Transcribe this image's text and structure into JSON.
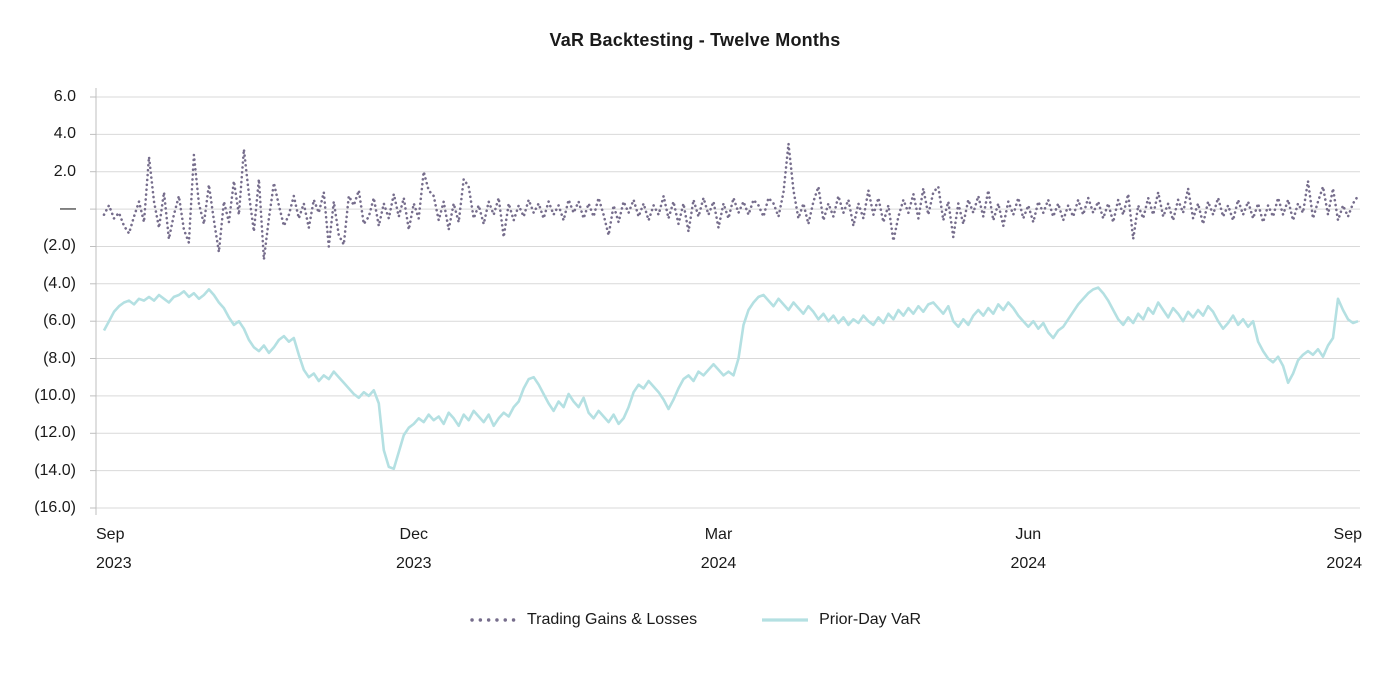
{
  "title": "VaR Backtesting - Twelve Months",
  "colors": {
    "gains_losses": "#766d8c",
    "prior_day_var": "#b4e0e2",
    "gridline": "#d9d9d9",
    "axis": "#bfbfbf",
    "text": "#1a1a1a"
  },
  "legend": {
    "items": [
      "Trading Gains & Losses",
      "Prior-Day VaR"
    ]
  },
  "chart_data": {
    "type": "line",
    "title": "VaR Backtesting - Twelve Months",
    "grid": true,
    "legend_position": "bottom",
    "y_axis": {
      "min": -16,
      "max": 6,
      "step": 2,
      "format": "accounting",
      "tick_values": [
        6,
        4,
        2,
        0,
        -2,
        -4,
        -6,
        -8,
        -10,
        -12,
        -14,
        -16
      ],
      "tick_labels": [
        "6.0",
        "4.0",
        "2.0",
        "—",
        "(2.0)",
        "(4.0)",
        "(6.0)",
        "(8.0)",
        "(10.0)",
        "(12.0)",
        "(14.0)",
        "(16.0)"
      ]
    },
    "x_axis": {
      "ticks": [
        {
          "line1": "Sep",
          "line2": "2023",
          "index": 0
        },
        {
          "line1": "Dec",
          "line2": "2023",
          "index": 62
        },
        {
          "line1": "Mar",
          "line2": "2024",
          "index": 123
        },
        {
          "line1": "Jun",
          "line2": "2024",
          "index": 185
        },
        {
          "line1": "Sep",
          "line2": "2024",
          "index": 251
        }
      ]
    },
    "series": [
      {
        "name": "Trading Gains & Losses",
        "style": "dotted",
        "color": "#766d8c",
        "values": [
          -0.3,
          0.2,
          -0.5,
          -0.2,
          -0.9,
          -1.3,
          -0.4,
          0.4,
          -0.7,
          2.8,
          0.4,
          -1.0,
          0.9,
          -1.6,
          -0.3,
          0.7,
          -1.1,
          -1.8,
          2.9,
          0.3,
          -0.8,
          1.3,
          -0.6,
          -2.3,
          0.4,
          -0.7,
          1.5,
          -0.3,
          3.2,
          0.8,
          -1.2,
          1.6,
          -2.7,
          -0.5,
          1.4,
          0.2,
          -0.9,
          -0.3,
          0.7,
          -0.5,
          0.3,
          -1.0,
          0.5,
          -0.2,
          0.9,
          -2.0,
          0.4,
          -1.4,
          -1.9,
          0.7,
          0.2,
          1.0,
          -0.8,
          -0.4,
          0.6,
          -0.9,
          0.3,
          -0.5,
          0.8,
          -0.4,
          0.6,
          -1.1,
          0.3,
          -0.5,
          2.0,
          1.0,
          0.7,
          -0.6,
          0.4,
          -1.1,
          0.3,
          -0.7,
          1.6,
          1.2,
          -0.5,
          0.2,
          -0.8,
          0.4,
          -0.3,
          0.6,
          -1.5,
          0.3,
          -0.6,
          0.2,
          -0.4,
          0.5,
          -0.2,
          0.3,
          -0.5,
          0.4,
          -0.3,
          0.2,
          -0.6,
          0.5,
          -0.2,
          0.4,
          -0.5,
          0.3,
          -0.4,
          0.6,
          -0.3,
          -1.4,
          0.2,
          -0.7,
          0.4,
          -0.2,
          0.5,
          -0.4,
          0.3,
          -0.6,
          0.2,
          -0.3,
          0.7,
          -0.5,
          0.4,
          -0.8,
          0.3,
          -1.2,
          0.5,
          -0.4,
          0.6,
          -0.3,
          0.4,
          -1.0,
          0.3,
          -0.5,
          0.6,
          -0.2,
          0.4,
          -0.3,
          0.5,
          0.2,
          -0.4,
          0.6,
          0.3,
          -0.4,
          0.9,
          3.5,
          1.0,
          -0.5,
          0.3,
          -0.8,
          0.4,
          1.2,
          -0.6,
          0.3,
          -0.4,
          0.7,
          -0.2,
          0.5,
          -0.9,
          0.3,
          -0.5,
          1.0,
          -0.3,
          0.6,
          -0.7,
          0.2,
          -1.7,
          -0.4,
          0.5,
          -0.2,
          0.8,
          -0.5,
          1.1,
          -0.3,
          0.9,
          1.2,
          -0.6,
          0.4,
          -1.5,
          0.3,
          -0.8,
          0.5,
          -0.2,
          0.7,
          -0.4,
          1.0,
          -0.6,
          0.3,
          -0.9,
          0.4,
          -0.3,
          0.6,
          -0.5,
          0.2,
          -0.7,
          0.4,
          -0.2,
          0.5,
          -0.4,
          0.3,
          -0.6,
          0.2,
          -0.4,
          0.5,
          -0.3,
          0.6,
          -0.2,
          0.4,
          -0.5,
          0.3,
          -0.7,
          0.5,
          -0.3,
          0.8,
          -1.6,
          0.2,
          -0.5,
          0.6,
          -0.3,
          0.9,
          -0.4,
          0.3,
          -0.6,
          0.5,
          -0.2,
          1.1,
          -0.5,
          0.3,
          -0.8,
          0.4,
          -0.3,
          0.6,
          -0.4,
          0.2,
          -0.6,
          0.5,
          -0.3,
          0.4,
          -0.5,
          0.3,
          -0.7,
          0.2,
          -0.4,
          0.6,
          -0.3,
          0.5,
          -0.6,
          0.3,
          -0.2,
          1.5,
          -0.5,
          0.4,
          1.2,
          -0.3,
          1.1,
          -0.6,
          0.2,
          -0.4,
          0.3,
          0.7
        ]
      },
      {
        "name": "Prior-Day VaR",
        "style": "solid",
        "color": "#b4e0e2",
        "values": [
          -6.5,
          -6.0,
          -5.5,
          -5.2,
          -5.0,
          -4.9,
          -5.1,
          -4.8,
          -4.9,
          -4.7,
          -4.9,
          -4.6,
          -4.8,
          -5.0,
          -4.7,
          -4.6,
          -4.4,
          -4.7,
          -4.5,
          -4.8,
          -4.6,
          -4.3,
          -4.6,
          -5.0,
          -5.3,
          -5.8,
          -6.2,
          -6.0,
          -6.4,
          -7.0,
          -7.4,
          -7.6,
          -7.3,
          -7.7,
          -7.4,
          -7.0,
          -6.8,
          -7.1,
          -6.9,
          -7.8,
          -8.6,
          -9.0,
          -8.8,
          -9.2,
          -8.9,
          -9.1,
          -8.7,
          -9.0,
          -9.3,
          -9.6,
          -9.9,
          -10.1,
          -9.8,
          -10.0,
          -9.7,
          -10.4,
          -12.9,
          -13.8,
          -13.9,
          -13.0,
          -12.1,
          -11.7,
          -11.5,
          -11.2,
          -11.4,
          -11.0,
          -11.3,
          -11.1,
          -11.5,
          -10.9,
          -11.2,
          -11.6,
          -11.0,
          -11.3,
          -10.8,
          -11.1,
          -11.4,
          -11.0,
          -11.6,
          -11.2,
          -10.9,
          -11.1,
          -10.6,
          -10.3,
          -9.6,
          -9.1,
          -9.0,
          -9.4,
          -9.9,
          -10.4,
          -10.8,
          -10.3,
          -10.6,
          -9.9,
          -10.3,
          -10.6,
          -10.1,
          -10.9,
          -11.2,
          -10.8,
          -11.1,
          -11.4,
          -11.0,
          -11.5,
          -11.2,
          -10.6,
          -9.8,
          -9.4,
          -9.6,
          -9.2,
          -9.5,
          -9.8,
          -10.2,
          -10.7,
          -10.2,
          -9.6,
          -9.1,
          -8.9,
          -9.2,
          -8.7,
          -8.9,
          -8.6,
          -8.3,
          -8.6,
          -8.9,
          -8.7,
          -8.9,
          -8.0,
          -6.2,
          -5.4,
          -5.0,
          -4.7,
          -4.6,
          -4.9,
          -5.2,
          -4.8,
          -5.1,
          -5.4,
          -5.0,
          -5.3,
          -5.6,
          -5.2,
          -5.5,
          -5.9,
          -5.6,
          -6.0,
          -5.7,
          -6.1,
          -5.8,
          -6.2,
          -5.9,
          -6.1,
          -5.7,
          -6.0,
          -6.2,
          -5.8,
          -6.1,
          -5.6,
          -5.9,
          -5.4,
          -5.7,
          -5.3,
          -5.6,
          -5.2,
          -5.5,
          -5.1,
          -5.0,
          -5.3,
          -5.6,
          -5.2,
          -6.0,
          -6.3,
          -5.9,
          -6.2,
          -5.7,
          -5.4,
          -5.7,
          -5.3,
          -5.6,
          -5.1,
          -5.4,
          -5.0,
          -5.3,
          -5.7,
          -6.0,
          -6.3,
          -6.0,
          -6.4,
          -6.1,
          -6.6,
          -6.9,
          -6.5,
          -6.3,
          -5.9,
          -5.5,
          -5.1,
          -4.8,
          -4.5,
          -4.3,
          -4.2,
          -4.5,
          -4.9,
          -5.4,
          -5.9,
          -6.2,
          -5.8,
          -6.1,
          -5.6,
          -5.9,
          -5.3,
          -5.6,
          -5.0,
          -5.4,
          -5.8,
          -5.3,
          -5.6,
          -6.0,
          -5.5,
          -5.8,
          -5.4,
          -5.7,
          -5.2,
          -5.5,
          -6.0,
          -6.4,
          -6.1,
          -5.7,
          -6.2,
          -5.9,
          -6.3,
          -6.0,
          -7.1,
          -7.6,
          -8.0,
          -8.2,
          -7.9,
          -8.4,
          -9.3,
          -8.8,
          -8.1,
          -7.8,
          -7.6,
          -7.8,
          -7.5,
          -7.9,
          -7.3,
          -6.9,
          -4.8,
          -5.4,
          -5.9,
          -6.1,
          -6.0
        ]
      }
    ]
  }
}
